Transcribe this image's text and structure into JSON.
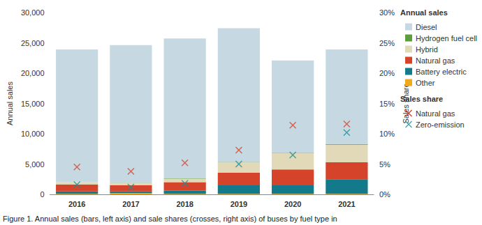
{
  "chart_data": {
    "type": "bar",
    "stacked": true,
    "caption": "Figure 1. Annual sales (bars, left axis) and sale shares (crosses, right axis) of buses by fuel type in",
    "y_label": "Annual sales",
    "y2_label": "Sales share",
    "categories": [
      "2016",
      "2017",
      "2018",
      "2019",
      "2020",
      "2021"
    ],
    "ylim": [
      0,
      30000
    ],
    "yticks": [
      0,
      {
        "value": 5000,
        "label": "5,000"
      },
      {
        "value": 10000,
        "label": "10,000"
      },
      {
        "value": 15000,
        "label": "15,000"
      },
      {
        "value": 20000,
        "label": "20,000"
      },
      {
        "value": 25000,
        "label": "25,000"
      },
      {
        "value": 30000,
        "label": "30,000"
      }
    ],
    "y2lim": [
      0,
      30
    ],
    "y2ticks": [
      {
        "value": 0,
        "label": "0%"
      },
      {
        "value": 5,
        "label": "5%"
      },
      {
        "value": 10,
        "label": "10%"
      },
      {
        "value": 15,
        "label": "15%"
      },
      {
        "value": 20,
        "label": "20%"
      },
      {
        "value": 25,
        "label": "25%"
      },
      {
        "value": 30,
        "label": "30%"
      }
    ],
    "grid": false,
    "legend": "right",
    "series": [
      {
        "name": "Diesel",
        "group": "Annual sales",
        "type": "bar",
        "color": "#c6d9e3",
        "values": [
          21900,
          22700,
          23100,
          22050,
          15240,
          15600
        ]
      },
      {
        "name": "Hydrogen fuel cell",
        "group": "Annual sales",
        "type": "bar",
        "color": "#5c9e3c",
        "values": [
          20,
          20,
          30,
          50,
          60,
          100
        ]
      },
      {
        "name": "Hybrid",
        "group": "Annual sales",
        "type": "bar",
        "color": "#e2d9b9",
        "values": [
          400,
          400,
          600,
          1700,
          2700,
          2900
        ]
      },
      {
        "name": "Natural gas",
        "group": "Annual sales",
        "type": "bar",
        "color": "#d6432b",
        "values": [
          1100,
          1000,
          1400,
          2100,
          2600,
          2800
        ]
      },
      {
        "name": "Battery electric",
        "group": "Annual sales",
        "type": "bar",
        "color": "#137a8c",
        "values": [
          400,
          300,
          500,
          1400,
          1400,
          2400
        ]
      },
      {
        "name": "Other",
        "group": "Annual sales",
        "type": "bar",
        "color": "#f0a81c",
        "values": [
          100,
          200,
          100,
          100,
          100,
          100
        ]
      },
      {
        "name": "Natural gas",
        "group": "Sales share",
        "type": "scatter",
        "axis": "y2",
        "marker": "x",
        "color": "#d6432b",
        "values": [
          4.5,
          3.8,
          5.2,
          7.3,
          11.4,
          11.6
        ]
      },
      {
        "name": "Zero-emission",
        "group": "Sales share",
        "type": "scatter",
        "axis": "y2",
        "marker": "x",
        "color": "#1a8f99",
        "values": [
          1.6,
          1.2,
          1.8,
          5.0,
          6.5,
          10.2
        ]
      }
    ]
  }
}
